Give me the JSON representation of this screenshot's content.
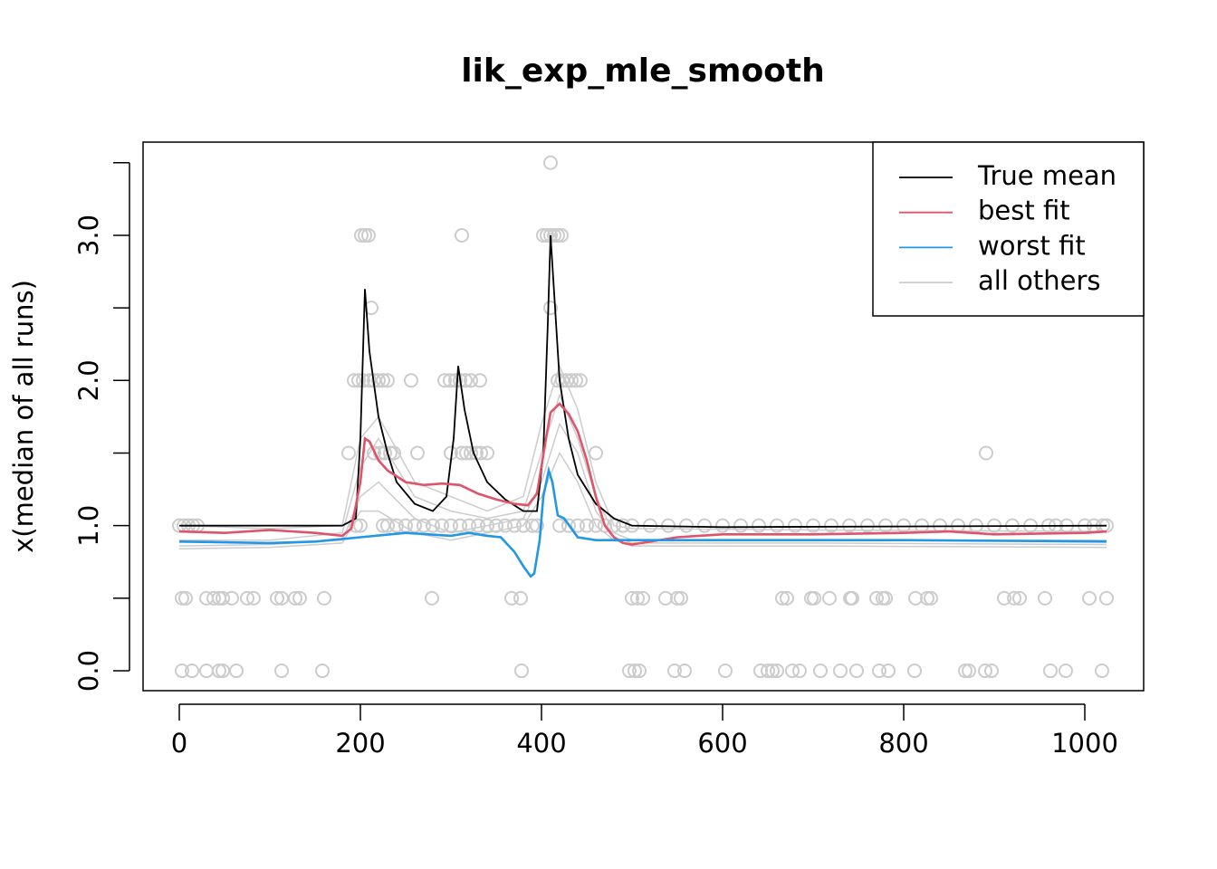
{
  "chart_data": {
    "type": "line",
    "title": "lik_exp_mle_smooth",
    "ylabel": "x(median of all runs)",
    "xlim": [
      -40,
      1065
    ],
    "ylim": [
      -0.137,
      3.642
    ],
    "xticks": [
      0,
      200,
      400,
      600,
      800,
      1000
    ],
    "yticks": [
      {
        "value": 0,
        "label": "0.0"
      },
      {
        "value": 0.5,
        "label": null
      },
      {
        "value": 1,
        "label": "1.0"
      },
      {
        "value": 1.5,
        "label": null
      },
      {
        "value": 2,
        "label": "2.0"
      },
      {
        "value": 2.5,
        "label": null
      },
      {
        "value": 3,
        "label": "3.0"
      },
      {
        "value": 3.5,
        "label": null
      }
    ],
    "legend": "top-right",
    "points_color": "#cccccc",
    "points": [
      {
        "y": 0,
        "x": [
          3,
          14,
          30,
          44,
          48,
          63,
          113,
          158,
          378,
          497,
          503,
          508,
          547,
          558,
          603,
          642,
          650,
          655,
          660,
          677,
          685,
          708,
          730,
          748,
          773,
          783,
          812,
          868,
          872,
          890,
          897,
          962,
          979,
          1019
        ]
      },
      {
        "y": 0.5,
        "x": [
          3,
          7,
          30,
          38,
          44,
          48,
          58,
          75,
          82,
          108,
          113,
          128,
          133,
          160,
          279,
          367,
          377,
          500,
          506,
          512,
          537,
          550,
          554,
          666,
          671,
          698,
          701,
          718,
          741,
          743,
          770,
          777,
          780,
          813,
          826,
          830,
          911,
          922,
          928,
          956,
          1005,
          1024
        ]
      },
      {
        "y": 1,
        "x": [
          0,
          5,
          10,
          15,
          20,
          195,
          200,
          225,
          230,
          240,
          250,
          260,
          270,
          280,
          290,
          300,
          310,
          320,
          330,
          340,
          350,
          360,
          370,
          380,
          390,
          395,
          420,
          430,
          440,
          450,
          460,
          470,
          480,
          490,
          500,
          520,
          540,
          560,
          580,
          600,
          620,
          640,
          660,
          680,
          700,
          720,
          740,
          760,
          780,
          800,
          820,
          840,
          860,
          880,
          900,
          920,
          940,
          960,
          968,
          980,
          1000,
          1010,
          1020,
          1024
        ]
      },
      {
        "y": 1.5,
        "x": [
          187,
          215,
          222,
          227,
          233,
          237,
          263,
          300,
          312,
          317,
          322,
          328,
          333,
          340,
          460,
          891
        ]
      },
      {
        "y": 2,
        "x": [
          193,
          198,
          203,
          210,
          215,
          220,
          225,
          230,
          256,
          293,
          299,
          305,
          310,
          316,
          322,
          332,
          418,
          423,
          428,
          433,
          438,
          443
        ]
      },
      {
        "y": 2.5,
        "x": [
          212,
          410
        ]
      },
      {
        "y": 3,
        "x": [
          201,
          205,
          209,
          312,
          402,
          406,
          410,
          414,
          418,
          422
        ]
      },
      {
        "y": 3.5,
        "x": [
          410
        ]
      }
    ],
    "series": [
      {
        "name": "True mean",
        "color": "#000000",
        "x": [
          0,
          180,
          195,
          200,
          205,
          210,
          220,
          230,
          240,
          260,
          280,
          295,
          303,
          308,
          315,
          325,
          340,
          360,
          380,
          395,
          402,
          407,
          410,
          415,
          420,
          430,
          440,
          460,
          480,
          500,
          600,
          1024
        ],
        "values": [
          1.0,
          1.0,
          1.05,
          1.6,
          2.63,
          2.2,
          1.75,
          1.5,
          1.3,
          1.15,
          1.1,
          1.2,
          1.6,
          2.1,
          1.8,
          1.5,
          1.3,
          1.18,
          1.1,
          1.1,
          1.5,
          2.4,
          3.0,
          2.5,
          2.0,
          1.6,
          1.35,
          1.15,
          1.05,
          1.0,
          0.99,
          1.0
        ]
      },
      {
        "name": "best fit",
        "color": "#df536b",
        "x": [
          0,
          50,
          100,
          150,
          180,
          190,
          200,
          205,
          210,
          220,
          230,
          250,
          270,
          290,
          310,
          330,
          350,
          370,
          385,
          395,
          405,
          410,
          420,
          430,
          440,
          450,
          460,
          470,
          480,
          490,
          500,
          550,
          600,
          700,
          800,
          850,
          900,
          1000,
          1024
        ],
        "values": [
          0.96,
          0.95,
          0.97,
          0.95,
          0.93,
          0.98,
          1.3,
          1.6,
          1.58,
          1.45,
          1.38,
          1.3,
          1.28,
          1.29,
          1.28,
          1.22,
          1.18,
          1.15,
          1.14,
          1.22,
          1.6,
          1.78,
          1.84,
          1.77,
          1.65,
          1.45,
          1.2,
          1.0,
          0.92,
          0.88,
          0.87,
          0.92,
          0.94,
          0.94,
          0.95,
          0.96,
          0.94,
          0.95,
          0.96
        ]
      },
      {
        "name": "worst fit",
        "color": "#2297e6",
        "x": [
          0,
          100,
          150,
          200,
          250,
          300,
          320,
          340,
          355,
          370,
          380,
          388,
          392,
          398,
          402,
          408,
          412,
          418,
          425,
          440,
          460,
          500,
          600,
          800,
          1024
        ],
        "values": [
          0.89,
          0.88,
          0.89,
          0.92,
          0.95,
          0.93,
          0.95,
          0.93,
          0.92,
          0.82,
          0.72,
          0.65,
          0.67,
          0.9,
          1.2,
          1.38,
          1.3,
          1.07,
          1.05,
          0.92,
          0.9,
          0.9,
          0.9,
          0.9,
          0.89
        ]
      },
      {
        "name": "all others",
        "color": "#cccccc",
        "x": [
          0,
          100,
          180,
          200,
          220,
          260,
          300,
          340,
          380,
          400,
          420,
          440,
          460,
          480,
          500,
          700,
          1024
        ],
        "lines": [
          [
            0.9,
            0.9,
            0.95,
            1.4,
            1.6,
            1.2,
            1.1,
            1.05,
            1.1,
            1.5,
            1.9,
            1.6,
            1.2,
            0.95,
            0.9,
            0.9,
            0.9
          ],
          [
            0.86,
            0.87,
            0.9,
            1.2,
            1.3,
            1.05,
            0.95,
            1.0,
            1.05,
            1.3,
            1.7,
            1.5,
            1.1,
            0.92,
            0.88,
            0.88,
            0.87
          ],
          [
            1.0,
            0.98,
            1.0,
            1.6,
            1.75,
            1.3,
            1.2,
            1.1,
            1.2,
            1.7,
            2.1,
            1.8,
            1.3,
            1.0,
            0.98,
            0.97,
            0.96
          ],
          [
            0.84,
            0.85,
            0.88,
            1.1,
            1.1,
            0.95,
            0.9,
            0.95,
            1.0,
            1.2,
            1.5,
            1.3,
            1.0,
            0.9,
            0.86,
            0.86,
            0.85
          ]
        ]
      }
    ]
  }
}
